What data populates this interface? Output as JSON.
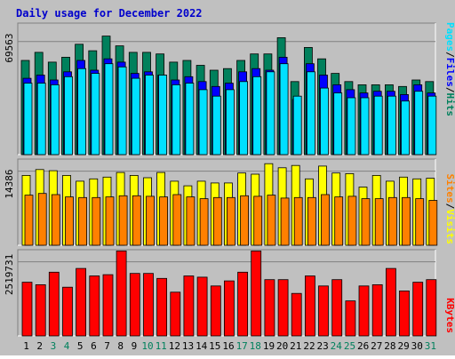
{
  "title": "Daily usage for December 2022",
  "colors": {
    "background": "#C0C0C0",
    "panel": "#C0C0C0",
    "title": "#0000CC",
    "hits": "#00805C",
    "files": "#0000FF",
    "pages": "#00E0FF",
    "visits": "#FFFF00",
    "sites": "#FF8000",
    "kbytes": "#FF0000",
    "weekend_label": "#00805C",
    "weekday_label": "#000000"
  },
  "chart_data": [
    {
      "type": "bar",
      "panel": "top",
      "y_tick_label": "69563",
      "ylim": [
        0,
        81000
      ],
      "categories": [
        "1",
        "2",
        "3",
        "4",
        "5",
        "6",
        "7",
        "8",
        "9",
        "10",
        "11",
        "12",
        "13",
        "14",
        "15",
        "16",
        "17",
        "18",
        "19",
        "20",
        "21",
        "22",
        "23",
        "24",
        "25",
        "26",
        "27",
        "28",
        "29",
        "30",
        "31"
      ],
      "weekend_days": [
        "3",
        "4",
        "10",
        "11",
        "17",
        "18",
        "24",
        "25",
        "31"
      ],
      "series": [
        {
          "name": "Hits",
          "values": [
            58000,
            63000,
            57000,
            60000,
            68000,
            64000,
            73000,
            67000,
            63000,
            63000,
            62000,
            57000,
            58000,
            55000,
            52000,
            53000,
            58000,
            62000,
            62000,
            72000,
            45000,
            66000,
            59000,
            50000,
            45000,
            43000,
            43000,
            43000,
            42000,
            46000,
            45000
          ]
        },
        {
          "name": "Files",
          "values": [
            47000,
            49000,
            46000,
            51000,
            58000,
            52000,
            59000,
            57000,
            50000,
            51000,
            49000,
            46000,
            48000,
            45000,
            42000,
            44000,
            51000,
            53000,
            52000,
            60000,
            34000,
            56000,
            49000,
            43000,
            40000,
            38000,
            39000,
            39000,
            37000,
            43000,
            38000
          ]
        },
        {
          "name": "Pages",
          "values": [
            44000,
            44000,
            43000,
            48000,
            53000,
            50000,
            56000,
            54000,
            47000,
            49000,
            49000,
            43000,
            44000,
            40000,
            36000,
            40000,
            45000,
            48000,
            51000,
            56000,
            36000,
            51000,
            41000,
            38000,
            35000,
            35000,
            36000,
            36000,
            33000,
            39000,
            36000
          ]
        }
      ]
    },
    {
      "type": "bar",
      "panel": "middle",
      "y_tick_label": "14386",
      "ylim": [
        0,
        14800
      ],
      "categories": [
        "1",
        "2",
        "3",
        "4",
        "5",
        "6",
        "7",
        "8",
        "9",
        "10",
        "11",
        "12",
        "13",
        "14",
        "15",
        "16",
        "17",
        "18",
        "19",
        "20",
        "21",
        "22",
        "23",
        "24",
        "25",
        "26",
        "27",
        "28",
        "29",
        "30",
        "31"
      ],
      "series": [
        {
          "name": "Visits",
          "values": [
            12000,
            13000,
            12800,
            12000,
            11000,
            11400,
            11700,
            12500,
            12000,
            11600,
            12500,
            11000,
            10200,
            11000,
            10700,
            10700,
            12400,
            12200,
            14000,
            13300,
            13700,
            11400,
            13600,
            12400,
            12300,
            10000,
            12000,
            11000,
            11700,
            11400,
            11500
          ]
        },
        {
          "name": "Sites",
          "values": [
            8600,
            8900,
            8700,
            8300,
            8200,
            8200,
            8300,
            8500,
            8500,
            8400,
            8300,
            8700,
            8300,
            8000,
            8200,
            8200,
            8500,
            8400,
            8600,
            8100,
            8200,
            8200,
            8700,
            8300,
            8400,
            8000,
            8000,
            8200,
            8200,
            8000,
            7700
          ]
        }
      ]
    },
    {
      "type": "bar",
      "panel": "bottom",
      "y_tick_label": "2519731",
      "ylim": [
        0,
        3450000
      ],
      "categories": [
        "1",
        "2",
        "3",
        "4",
        "5",
        "6",
        "7",
        "8",
        "9",
        "10",
        "11",
        "12",
        "13",
        "14",
        "15",
        "16",
        "17",
        "18",
        "19",
        "20",
        "21",
        "22",
        "23",
        "24",
        "25",
        "26",
        "27",
        "28",
        "29",
        "30",
        "31"
      ],
      "series": [
        {
          "name": "KBytes",
          "values": [
            2150000,
            2050000,
            2550000,
            1950000,
            2700000,
            2400000,
            2450000,
            3400000,
            2500000,
            2500000,
            2300000,
            1750000,
            2400000,
            2350000,
            2000000,
            2200000,
            2550000,
            3400000,
            2250000,
            2250000,
            1700000,
            2400000,
            2000000,
            2250000,
            1400000,
            2000000,
            2050000,
            2700000,
            1800000,
            2150000,
            2250000
          ]
        }
      ]
    }
  ],
  "legend": {
    "top": {
      "pages": "Pages",
      "sep1": "/",
      "files": "Files",
      "sep2": "/",
      "hits": "Hits"
    },
    "middle": {
      "sites": "Sites",
      "sep": "/",
      "visits": "Visits"
    },
    "bottom": {
      "kbytes": "KBytes"
    }
  }
}
